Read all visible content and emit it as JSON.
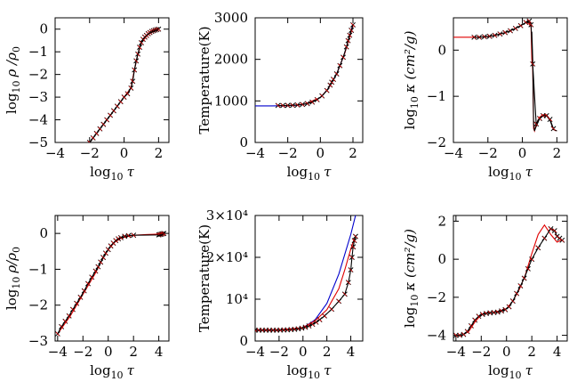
{
  "colors": {
    "black": "#000000",
    "red": "#e00000",
    "blue": "#0000cc"
  },
  "chart_data": [
    {
      "id": "p1",
      "type": "line",
      "xlabel_base": "log",
      "xlabel_sub": "10",
      "xlabel_var": "τ",
      "ylabel_base": "log",
      "ylabel_sub": "10",
      "ylabel_var": "ρ /ρ",
      "ylabel_sub2": "0",
      "xlim": [
        -4,
        2.6
      ],
      "ylim": [
        -5,
        0.5
      ],
      "log_y": false,
      "xticks": [
        {
          "v": -4,
          "l": "−4"
        },
        {
          "v": -2,
          "l": "−2"
        },
        {
          "v": 0,
          "l": "0"
        },
        {
          "v": 2,
          "l": "2"
        }
      ],
      "yticks": [
        {
          "v": 0,
          "l": "0"
        },
        {
          "v": -1,
          "l": "−1"
        },
        {
          "v": -2,
          "l": "−2"
        },
        {
          "v": -3,
          "l": "−3"
        },
        {
          "v": -4,
          "l": "−4"
        },
        {
          "v": -5,
          "l": "−5"
        }
      ],
      "series": [
        {
          "color": "black",
          "marker": "none",
          "x": [
            -2,
            -1,
            0,
            0.4,
            0.6,
            0.8,
            1.0,
            1.3,
            1.6,
            2.0
          ],
          "y": [
            -5.0,
            -4.0,
            -3.0,
            -2.6,
            -1.8,
            -1.1,
            -0.6,
            -0.3,
            -0.1,
            0.0
          ]
        },
        {
          "color": "red",
          "marker": "none",
          "x": [
            -2,
            -1,
            0,
            0.4,
            0.6,
            0.8,
            1.0,
            1.3,
            1.6,
            2.0
          ],
          "y": [
            -5.0,
            -4.0,
            -3.0,
            -2.6,
            -1.8,
            -1.1,
            -0.6,
            -0.3,
            -0.1,
            0.0
          ]
        },
        {
          "color": "black",
          "marker": "x",
          "x": [
            -2.0,
            -1.8,
            -1.6,
            -1.4,
            -1.2,
            -1.0,
            -0.8,
            -0.6,
            -0.4,
            -0.2,
            0.0,
            0.2,
            0.4,
            0.5,
            0.6,
            0.7,
            0.8,
            0.9,
            1.0,
            1.1,
            1.2,
            1.3,
            1.4,
            1.5,
            1.6,
            1.7,
            1.8,
            1.9,
            2.0
          ],
          "y": [
            -5.0,
            -4.8,
            -4.6,
            -4.4,
            -4.2,
            -4.0,
            -3.8,
            -3.6,
            -3.4,
            -3.2,
            -3.0,
            -2.85,
            -2.6,
            -2.3,
            -1.8,
            -1.4,
            -1.1,
            -0.8,
            -0.6,
            -0.45,
            -0.35,
            -0.28,
            -0.2,
            -0.15,
            -0.1,
            -0.07,
            -0.04,
            -0.02,
            0.0
          ]
        }
      ]
    },
    {
      "id": "p2",
      "type": "line",
      "xlabel_base": "log",
      "xlabel_sub": "10",
      "xlabel_var": "τ",
      "ylabel_text": "Temperature(K)",
      "xlim": [
        -4,
        2.6
      ],
      "ylim": [
        0,
        3000
      ],
      "log_y": false,
      "xticks": [
        {
          "v": -4,
          "l": "−4"
        },
        {
          "v": -2,
          "l": "−2"
        },
        {
          "v": 0,
          "l": "0"
        },
        {
          "v": 2,
          "l": "2"
        }
      ],
      "yticks": [
        {
          "v": 0,
          "l": "0"
        },
        {
          "v": 1000,
          "l": "1000"
        },
        {
          "v": 2000,
          "l": "2000"
        },
        {
          "v": 3000,
          "l": "3000"
        }
      ],
      "series": [
        {
          "color": "blue",
          "marker": "none",
          "x": [
            -4,
            -3,
            -2,
            -1.5,
            -1,
            -0.5,
            0,
            0.5,
            1.0,
            1.5,
            2.0
          ],
          "y": [
            880,
            880,
            885,
            895,
            920,
            980,
            1080,
            1300,
            1650,
            2150,
            2850
          ]
        },
        {
          "color": "red",
          "marker": "none",
          "x": [
            -2.5,
            -2,
            -1,
            0,
            0.5,
            1.0,
            1.5,
            2.0
          ],
          "y": [
            885,
            885,
            920,
            1080,
            1300,
            1650,
            2150,
            2800
          ]
        },
        {
          "color": "black",
          "marker": "x",
          "x": [
            -2.6,
            -2.3,
            -2.0,
            -1.7,
            -1.4,
            -1.1,
            -0.8,
            -0.5,
            -0.2,
            0.1,
            0.4,
            0.6,
            0.7,
            0.8,
            1.0,
            1.2,
            1.4,
            1.6,
            1.7,
            1.8,
            1.9,
            2.0
          ],
          "y": [
            890,
            890,
            892,
            895,
            902,
            915,
            935,
            970,
            1030,
            1120,
            1250,
            1380,
            1450,
            1520,
            1650,
            1850,
            2050,
            2300,
            2450,
            2580,
            2700,
            2830
          ]
        }
      ]
    },
    {
      "id": "p3",
      "type": "line",
      "xlabel_base": "log",
      "xlabel_sub": "10",
      "xlabel_var": "τ",
      "ylabel_base": "log",
      "ylabel_sub": "10",
      "ylabel_var": "κ (cm²/g)",
      "xlim": [
        -4,
        2.6
      ],
      "ylim": [
        -2,
        0.7
      ],
      "log_y": false,
      "xticks": [
        {
          "v": -4,
          "l": "−4"
        },
        {
          "v": -2,
          "l": "−2"
        },
        {
          "v": 0,
          "l": "0"
        },
        {
          "v": 2,
          "l": "2"
        }
      ],
      "yticks": [
        {
          "v": 0,
          "l": "0"
        },
        {
          "v": -1,
          "l": "−1"
        },
        {
          "v": -2,
          "l": "−2"
        }
      ],
      "series": [
        {
          "color": "red",
          "marker": "none",
          "x": [
            -4,
            -3,
            -2,
            -1.5,
            -1,
            -0.5,
            0,
            0.3,
            0.5,
            0.55,
            0.6,
            0.65,
            0.7,
            0.8,
            1.0,
            1.2,
            1.4,
            1.6,
            1.8,
            2.0
          ],
          "y": [
            0.28,
            0.28,
            0.29,
            0.33,
            0.38,
            0.45,
            0.55,
            0.62,
            0.5,
            -0.2,
            -0.4,
            -1.7,
            -1.75,
            -1.6,
            -1.45,
            -1.4,
            -1.4,
            -1.5,
            -1.72,
            -1.75
          ]
        },
        {
          "color": "black",
          "marker": "none",
          "x": [
            0.55,
            0.6,
            0.65,
            0.7,
            0.8,
            1.0,
            1.2,
            1.4,
            1.6,
            1.8,
            2.0
          ],
          "y": [
            0.4,
            -0.2,
            -1.6,
            -1.75,
            -1.65,
            -1.48,
            -1.42,
            -1.42,
            -1.52,
            -1.72,
            -1.75
          ]
        },
        {
          "color": "black",
          "marker": "x",
          "x": [
            -2.8,
            -2.5,
            -2.2,
            -1.9,
            -1.6,
            -1.3,
            -1.0,
            -0.7,
            -0.4,
            -0.1,
            0.2,
            0.4,
            0.5,
            0.6,
            0.8,
            1.0,
            1.2,
            1.4,
            1.6,
            1.8
          ],
          "y": [
            0.28,
            0.28,
            0.29,
            0.3,
            0.32,
            0.35,
            0.38,
            0.42,
            0.47,
            0.53,
            0.6,
            0.63,
            0.55,
            -0.3,
            -1.6,
            -1.48,
            -1.42,
            -1.42,
            -1.5,
            -1.7
          ]
        }
      ]
    },
    {
      "id": "p4",
      "type": "line",
      "xlabel_base": "log",
      "xlabel_sub": "10",
      "xlabel_var": "τ",
      "ylabel_base": "log",
      "ylabel_sub": "10",
      "ylabel_var": "ρ/ρ",
      "ylabel_sub2": "0",
      "xlim": [
        -4.2,
        4.8
      ],
      "ylim": [
        -3,
        0.5
      ],
      "log_y": false,
      "xticks": [
        {
          "v": -4,
          "l": "−4"
        },
        {
          "v": -2,
          "l": "−2"
        },
        {
          "v": 0,
          "l": "0"
        },
        {
          "v": 2,
          "l": "2"
        },
        {
          "v": 4,
          "l": "4"
        }
      ],
      "yticks": [
        {
          "v": 0,
          "l": "0"
        },
        {
          "v": -1,
          "l": "−1"
        },
        {
          "v": -2,
          "l": "−2"
        },
        {
          "v": -3,
          "l": "−3"
        }
      ],
      "series": [
        {
          "color": "red",
          "marker": "none",
          "x": [
            -4,
            -3,
            -2,
            -1,
            -0.5,
            0,
            0.5,
            1,
            2,
            3,
            4,
            4.4
          ],
          "y": [
            -2.8,
            -2.3,
            -1.7,
            -1.1,
            -0.75,
            -0.45,
            -0.25,
            -0.13,
            -0.05,
            -0.03,
            -0.02,
            0.0
          ]
        },
        {
          "color": "black",
          "marker": "x",
          "x": [
            -4.0,
            -3.7,
            -3.4,
            -3.1,
            -2.8,
            -2.5,
            -2.2,
            -1.9,
            -1.6,
            -1.3,
            -1.0,
            -0.8,
            -0.6,
            -0.4,
            -0.2,
            0.0,
            0.2,
            0.4,
            0.6,
            0.8,
            1.0,
            1.3,
            1.6,
            2.0,
            4.0,
            4.1,
            4.2,
            4.3,
            4.4
          ],
          "y": [
            -2.8,
            -2.6,
            -2.45,
            -2.3,
            -2.12,
            -1.95,
            -1.78,
            -1.6,
            -1.4,
            -1.22,
            -1.05,
            -0.93,
            -0.8,
            -0.67,
            -0.55,
            -0.45,
            -0.35,
            -0.27,
            -0.2,
            -0.15,
            -0.12,
            -0.08,
            -0.06,
            -0.05,
            -0.04,
            -0.03,
            -0.02,
            -0.01,
            0.0
          ]
        }
      ]
    },
    {
      "id": "p5",
      "type": "line",
      "xlabel_base": "log",
      "xlabel_sub": "10",
      "xlabel_var": "τ",
      "ylabel_text": "Temperature(K)",
      "xlim": [
        -4,
        5
      ],
      "ylim": [
        0,
        30000
      ],
      "log_y": false,
      "xticks": [
        {
          "v": -4,
          "l": "−4"
        },
        {
          "v": -2,
          "l": "−2"
        },
        {
          "v": 0,
          "l": "0"
        },
        {
          "v": 2,
          "l": "2"
        },
        {
          "v": 4,
          "l": "4"
        }
      ],
      "yticks": [
        {
          "v": 0,
          "l": "0"
        },
        {
          "v": 10000,
          "l": "10⁴"
        },
        {
          "v": 20000,
          "l": "2×10⁴"
        },
        {
          "v": 30000,
          "l": "3×10⁴"
        }
      ],
      "series": [
        {
          "color": "blue",
          "marker": "none",
          "x": [
            -4,
            -2,
            0,
            1,
            2,
            3,
            4,
            4.4
          ],
          "y": [
            2600,
            2600,
            3200,
            5000,
            9000,
            16000,
            25500,
            30000
          ]
        },
        {
          "color": "red",
          "marker": "none",
          "x": [
            -4,
            -2,
            0,
            1,
            2,
            3,
            3.5,
            4,
            4.3
          ],
          "y": [
            2600,
            2600,
            3200,
            4800,
            7500,
            12500,
            17000,
            22000,
            24500
          ]
        },
        {
          "color": "black",
          "marker": "x",
          "x": [
            -4.0,
            -3.7,
            -3.4,
            -3.1,
            -2.8,
            -2.5,
            -2.2,
            -1.9,
            -1.6,
            -1.3,
            -1.0,
            -0.7,
            -0.4,
            -0.1,
            0.2,
            0.5,
            0.8,
            1.1,
            1.4,
            1.8,
            2.4,
            3.0,
            3.5,
            3.8,
            4.0,
            4.1,
            4.2,
            4.3,
            4.4
          ],
          "y": [
            2600,
            2600,
            2600,
            2600,
            2600,
            2600,
            2600,
            2620,
            2640,
            2670,
            2720,
            2800,
            2920,
            3080,
            3300,
            3600,
            4000,
            4500,
            5100,
            6000,
            7600,
            9500,
            11200,
            14000,
            17000,
            20000,
            22500,
            24000,
            25000
          ]
        }
      ]
    },
    {
      "id": "p6",
      "type": "line",
      "xlabel_base": "log",
      "xlabel_sub": "10",
      "xlabel_var": "τ",
      "ylabel_base": "log",
      "ylabel_sub": "10",
      "ylabel_var": "κ (cm²/g)",
      "xlim": [
        -4.2,
        4.8
      ],
      "ylim": [
        -4.3,
        2.3
      ],
      "log_y": false,
      "xticks": [
        {
          "v": -4,
          "l": "−4"
        },
        {
          "v": -2,
          "l": "−2"
        },
        {
          "v": 0,
          "l": "0"
        },
        {
          "v": 2,
          "l": "2"
        },
        {
          "v": 4,
          "l": "4"
        }
      ],
      "yticks": [
        {
          "v": 2,
          "l": "2"
        },
        {
          "v": 0,
          "l": "0"
        },
        {
          "v": -2,
          "l": "−2"
        },
        {
          "v": -4,
          "l": "−4"
        }
      ],
      "series": [
        {
          "color": "red",
          "marker": "none",
          "x": [
            -4,
            -3.5,
            -3,
            -2.5,
            -2,
            -1.5,
            -1,
            -0.5,
            0,
            0.5,
            1,
            1.5,
            2,
            2.5,
            3.0,
            3.5,
            4.0,
            4.3
          ],
          "y": [
            -4.0,
            -4.0,
            -3.8,
            -3.3,
            -2.9,
            -2.8,
            -2.8,
            -2.7,
            -2.6,
            -2.2,
            -1.6,
            -0.8,
            0.3,
            1.3,
            1.8,
            1.3,
            0.9,
            1.0
          ]
        },
        {
          "color": "black",
          "marker": "x",
          "x": [
            -4.0,
            -3.7,
            -3.4,
            -3.1,
            -2.8,
            -2.5,
            -2.2,
            -1.9,
            -1.6,
            -1.3,
            -1.0,
            -0.7,
            -0.4,
            -0.1,
            0.2,
            0.5,
            0.8,
            1.1,
            1.4,
            1.7,
            2.0,
            2.5,
            3.0,
            3.5,
            3.8,
            4.0,
            4.2,
            4.4
          ],
          "y": [
            -4.0,
            -4.0,
            -3.95,
            -3.8,
            -3.5,
            -3.2,
            -3.0,
            -2.9,
            -2.85,
            -2.82,
            -2.8,
            -2.78,
            -2.72,
            -2.65,
            -2.5,
            -2.2,
            -1.8,
            -1.4,
            -1.0,
            -0.5,
            0.0,
            0.6,
            1.1,
            1.6,
            1.5,
            1.2,
            1.1,
            1.0
          ]
        }
      ]
    }
  ]
}
